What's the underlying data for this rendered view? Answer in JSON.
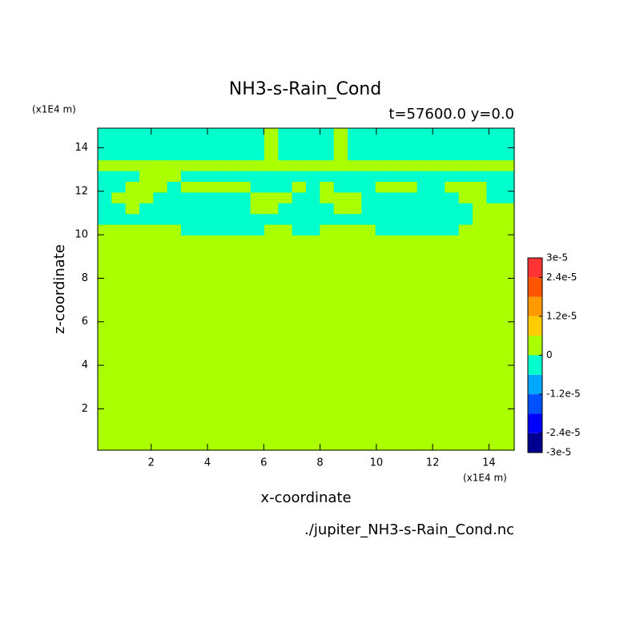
{
  "chart_data": {
    "type": "contour",
    "title": "NH3-s-Rain_Cond",
    "subtitle": "t=57600.0 y=0.0",
    "x_label": "x-coordinate",
    "y_label": "z-coordinate",
    "x_unit": "(x1E4 m)",
    "y_unit": "(x1E4 m)",
    "source": "./jupiter_NH3-s-Rain_Cond.nc",
    "xlim": [
      0.1,
      14.9
    ],
    "ylim": [
      0.1,
      14.9
    ],
    "xticks": [
      2,
      4,
      6,
      8,
      10,
      12,
      14
    ],
    "yticks": [
      2,
      4,
      6,
      8,
      10,
      12,
      14
    ],
    "levels": [
      -3e-05,
      -2.4e-05,
      -1.8e-05,
      -1.2e-05,
      -6e-06,
      0,
      6e-06,
      1.2e-05,
      1.8e-05,
      2.4e-05,
      3e-05
    ],
    "colors": [
      "#000090",
      "#0000ff",
      "#0050ff",
      "#00a8ff",
      "#00ffcc",
      "#aaff00",
      "#ffcc00",
      "#ff9900",
      "#ff5500",
      "#ff3333"
    ],
    "cbar_ticks": [
      {
        "value": 3e-05,
        "label": "3e-5"
      },
      {
        "value": 2.4e-05,
        "label": "2.4e-5"
      },
      {
        "value": 1.2e-05,
        "label": "1.2e-5"
      },
      0,
      {
        "value": -1.2e-05,
        "label": "-1.2e-5"
      },
      {
        "value": -2.4e-05,
        "label": "-2.4e-5"
      },
      {
        "value": -3e-05,
        "label": "-3e-5"
      }
    ],
    "z": [
      [
        -3e-06,
        -3e-06,
        -3e-06,
        -3e-06,
        -3e-06,
        -3e-06,
        -3e-06,
        -3e-06,
        -3e-06,
        -3e-06,
        -3e-06,
        -3e-06,
        0,
        -3e-06,
        -3e-06,
        -3e-06,
        -3e-06,
        0,
        -3e-06,
        -3e-06,
        -3e-06,
        -3e-06,
        -3e-06,
        -3e-06,
        -3e-06,
        -3e-06,
        -3e-06,
        -3e-06,
        -3e-06,
        -3e-06
      ],
      [
        -3e-06,
        -3e-06,
        -3e-06,
        -3e-06,
        -3e-06,
        -3e-06,
        -3e-06,
        -3e-06,
        -3e-06,
        -3e-06,
        -3e-06,
        -3e-06,
        0,
        -3e-06,
        -3e-06,
        -3e-06,
        -3e-06,
        0,
        -3e-06,
        -3e-06,
        -3e-06,
        -3e-06,
        -3e-06,
        -3e-06,
        -3e-06,
        -3e-06,
        -3e-06,
        -3e-06,
        -3e-06,
        -3e-06
      ],
      [
        -3e-06,
        -3e-06,
        -3e-06,
        -3e-06,
        -3e-06,
        -3e-06,
        -3e-06,
        -3e-06,
        -3e-06,
        -3e-06,
        -3e-06,
        -3e-06,
        0,
        -3e-06,
        -3e-06,
        -3e-06,
        -3e-06,
        0,
        -3e-06,
        -3e-06,
        -3e-06,
        -3e-06,
        -3e-06,
        -3e-06,
        -3e-06,
        -3e-06,
        -3e-06,
        -3e-06,
        -3e-06,
        -3e-06
      ],
      [
        0,
        0,
        0,
        0,
        0,
        0,
        0,
        0,
        0,
        0,
        0,
        0,
        0,
        0,
        0,
        0,
        0,
        0,
        0,
        0,
        0,
        0,
        0,
        0,
        0,
        0,
        0,
        0,
        0,
        0
      ],
      [
        -3e-06,
        -3e-06,
        -3e-06,
        0,
        0,
        0,
        -3e-06,
        -3e-06,
        -3e-06,
        -3e-06,
        -3e-06,
        -3e-06,
        -3e-06,
        -3e-06,
        -3e-06,
        -3e-06,
        -3e-06,
        -3e-06,
        -3e-06,
        -3e-06,
        -3e-06,
        -3e-06,
        -3e-06,
        -3e-06,
        -3e-06,
        -3e-06,
        -3e-06,
        -3e-06,
        -3e-06,
        -3e-06
      ],
      [
        -3e-06,
        -3e-06,
        0,
        0,
        0,
        -3e-06,
        0,
        0,
        0,
        0,
        0,
        -3e-06,
        -3e-06,
        -3e-06,
        0,
        -3e-06,
        0,
        -3e-06,
        -3e-06,
        -3e-06,
        0,
        0,
        0,
        -3e-06,
        -3e-06,
        0,
        0,
        0,
        -3e-06,
        -3e-06
      ],
      [
        -3e-06,
        0,
        0,
        0,
        -3e-06,
        -3e-06,
        -3e-06,
        -3e-06,
        -3e-06,
        -3e-06,
        -3e-06,
        0,
        0,
        0,
        -3e-06,
        -3e-06,
        0,
        0,
        0,
        -3e-06,
        -3e-06,
        -3e-06,
        -3e-06,
        -3e-06,
        -3e-06,
        -3e-06,
        0,
        0,
        -3e-06,
        -3e-06
      ],
      [
        -3e-06,
        -3e-06,
        0,
        -3e-06,
        -3e-06,
        -3e-06,
        -3e-06,
        -3e-06,
        -3e-06,
        -3e-06,
        -3e-06,
        0,
        0,
        -3e-06,
        -3e-06,
        -3e-06,
        -3e-06,
        0,
        0,
        -3e-06,
        -3e-06,
        -3e-06,
        -3e-06,
        -3e-06,
        -3e-06,
        -3e-06,
        -3e-06,
        0,
        0,
        0
      ],
      [
        -3e-06,
        -3e-06,
        -3e-06,
        -3e-06,
        -3e-06,
        -3e-06,
        -3e-06,
        -3e-06,
        -3e-06,
        -3e-06,
        -3e-06,
        -3e-06,
        -3e-06,
        -3e-06,
        -3e-06,
        -3e-06,
        -3e-06,
        -3e-06,
        -3e-06,
        -3e-06,
        -3e-06,
        -3e-06,
        -3e-06,
        -3e-06,
        -3e-06,
        -3e-06,
        -3e-06,
        0,
        0,
        0
      ],
      [
        0,
        0,
        0,
        0,
        0,
        0,
        -3e-06,
        -3e-06,
        -3e-06,
        -3e-06,
        -3e-06,
        -3e-06,
        0,
        0,
        -3e-06,
        -3e-06,
        0,
        0,
        0,
        0,
        -3e-06,
        -3e-06,
        -3e-06,
        -3e-06,
        -3e-06,
        -3e-06,
        0,
        0,
        0,
        0
      ],
      [
        0,
        0,
        0,
        0,
        0,
        0,
        0,
        0,
        0,
        0,
        0,
        0,
        0,
        0,
        0,
        0,
        0,
        0,
        0,
        0,
        0,
        0,
        0,
        0,
        0,
        0,
        0,
        0,
        0,
        0
      ],
      [
        0,
        0,
        0,
        0,
        0,
        0,
        0,
        0,
        0,
        0,
        0,
        0,
        0,
        0,
        0,
        0,
        0,
        0,
        0,
        0,
        0,
        0,
        0,
        0,
        0,
        0,
        0,
        0,
        0,
        0
      ],
      [
        0,
        0,
        0,
        0,
        0,
        0,
        0,
        0,
        0,
        0,
        0,
        0,
        0,
        0,
        0,
        0,
        0,
        0,
        0,
        0,
        0,
        0,
        0,
        0,
        0,
        0,
        0,
        0,
        0,
        0
      ],
      [
        0,
        0,
        0,
        0,
        0,
        0,
        0,
        0,
        0,
        0,
        0,
        0,
        0,
        0,
        0,
        0,
        0,
        0,
        0,
        0,
        0,
        0,
        0,
        0,
        0,
        0,
        0,
        0,
        0,
        0
      ],
      [
        0,
        0,
        0,
        0,
        0,
        0,
        0,
        0,
        0,
        0,
        0,
        0,
        0,
        0,
        0,
        0,
        0,
        0,
        0,
        0,
        0,
        0,
        0,
        0,
        0,
        0,
        0,
        0,
        0,
        0
      ],
      [
        0,
        0,
        0,
        0,
        0,
        0,
        0,
        0,
        0,
        0,
        0,
        0,
        0,
        0,
        0,
        0,
        0,
        0,
        0,
        0,
        0,
        0,
        0,
        0,
        0,
        0,
        0,
        0,
        0,
        0
      ],
      [
        0,
        0,
        0,
        0,
        0,
        0,
        0,
        0,
        0,
        0,
        0,
        0,
        0,
        0,
        0,
        0,
        0,
        0,
        0,
        0,
        0,
        0,
        0,
        0,
        0,
        0,
        0,
        0,
        0,
        0
      ],
      [
        0,
        0,
        0,
        0,
        0,
        0,
        0,
        0,
        0,
        0,
        0,
        0,
        0,
        0,
        0,
        0,
        0,
        0,
        0,
        0,
        0,
        0,
        0,
        0,
        0,
        0,
        0,
        0,
        0,
        0
      ],
      [
        0,
        0,
        0,
        0,
        0,
        0,
        0,
        0,
        0,
        0,
        0,
        0,
        0,
        0,
        0,
        0,
        0,
        0,
        0,
        0,
        0,
        0,
        0,
        0,
        0,
        0,
        0,
        0,
        0,
        0
      ],
      [
        0,
        0,
        0,
        0,
        0,
        0,
        0,
        0,
        0,
        0,
        0,
        0,
        0,
        0,
        0,
        0,
        0,
        0,
        0,
        0,
        0,
        0,
        0,
        0,
        0,
        0,
        0,
        0,
        0,
        0
      ],
      [
        0,
        0,
        0,
        0,
        0,
        0,
        0,
        0,
        0,
        0,
        0,
        0,
        0,
        0,
        0,
        0,
        0,
        0,
        0,
        0,
        0,
        0,
        0,
        0,
        0,
        0,
        0,
        0,
        0,
        0
      ],
      [
        0,
        0,
        0,
        0,
        0,
        0,
        0,
        0,
        0,
        0,
        0,
        0,
        0,
        0,
        0,
        0,
        0,
        0,
        0,
        0,
        0,
        0,
        0,
        0,
        0,
        0,
        0,
        0,
        0,
        0
      ],
      [
        0,
        0,
        0,
        0,
        0,
        0,
        0,
        0,
        0,
        0,
        0,
        0,
        0,
        0,
        0,
        0,
        0,
        0,
        0,
        0,
        0,
        0,
        0,
        0,
        0,
        0,
        0,
        0,
        0,
        0
      ],
      [
        0,
        0,
        0,
        0,
        0,
        0,
        0,
        0,
        0,
        0,
        0,
        0,
        0,
        0,
        0,
        0,
        0,
        0,
        0,
        0,
        0,
        0,
        0,
        0,
        0,
        0,
        0,
        0,
        0,
        0
      ],
      [
        0,
        0,
        0,
        0,
        0,
        0,
        0,
        0,
        0,
        0,
        0,
        0,
        0,
        0,
        0,
        0,
        0,
        0,
        0,
        0,
        0,
        0,
        0,
        0,
        0,
        0,
        0,
        0,
        0,
        0
      ],
      [
        0,
        0,
        0,
        0,
        0,
        0,
        0,
        0,
        0,
        0,
        0,
        0,
        0,
        0,
        0,
        0,
        0,
        0,
        0,
        0,
        0,
        0,
        0,
        0,
        0,
        0,
        0,
        0,
        0,
        0
      ],
      [
        0,
        0,
        0,
        0,
        0,
        0,
        0,
        0,
        0,
        0,
        0,
        0,
        0,
        0,
        0,
        0,
        0,
        0,
        0,
        0,
        0,
        0,
        0,
        0,
        0,
        0,
        0,
        0,
        0,
        0
      ],
      [
        0,
        0,
        0,
        0,
        0,
        0,
        0,
        0,
        0,
        0,
        0,
        0,
        0,
        0,
        0,
        0,
        0,
        0,
        0,
        0,
        0,
        0,
        0,
        0,
        0,
        0,
        0,
        0,
        0,
        0
      ],
      [
        0,
        0,
        0,
        0,
        0,
        0,
        0,
        0,
        0,
        0,
        0,
        0,
        0,
        0,
        0,
        0,
        0,
        0,
        0,
        0,
        0,
        0,
        0,
        0,
        0,
        0,
        0,
        0,
        0,
        0
      ],
      [
        0,
        0,
        0,
        0,
        0,
        0,
        0,
        0,
        0,
        0,
        0,
        0,
        0,
        0,
        0,
        0,
        0,
        0,
        0,
        0,
        0,
        0,
        0,
        0,
        0,
        0,
        0,
        0,
        0,
        0
      ]
    ]
  }
}
